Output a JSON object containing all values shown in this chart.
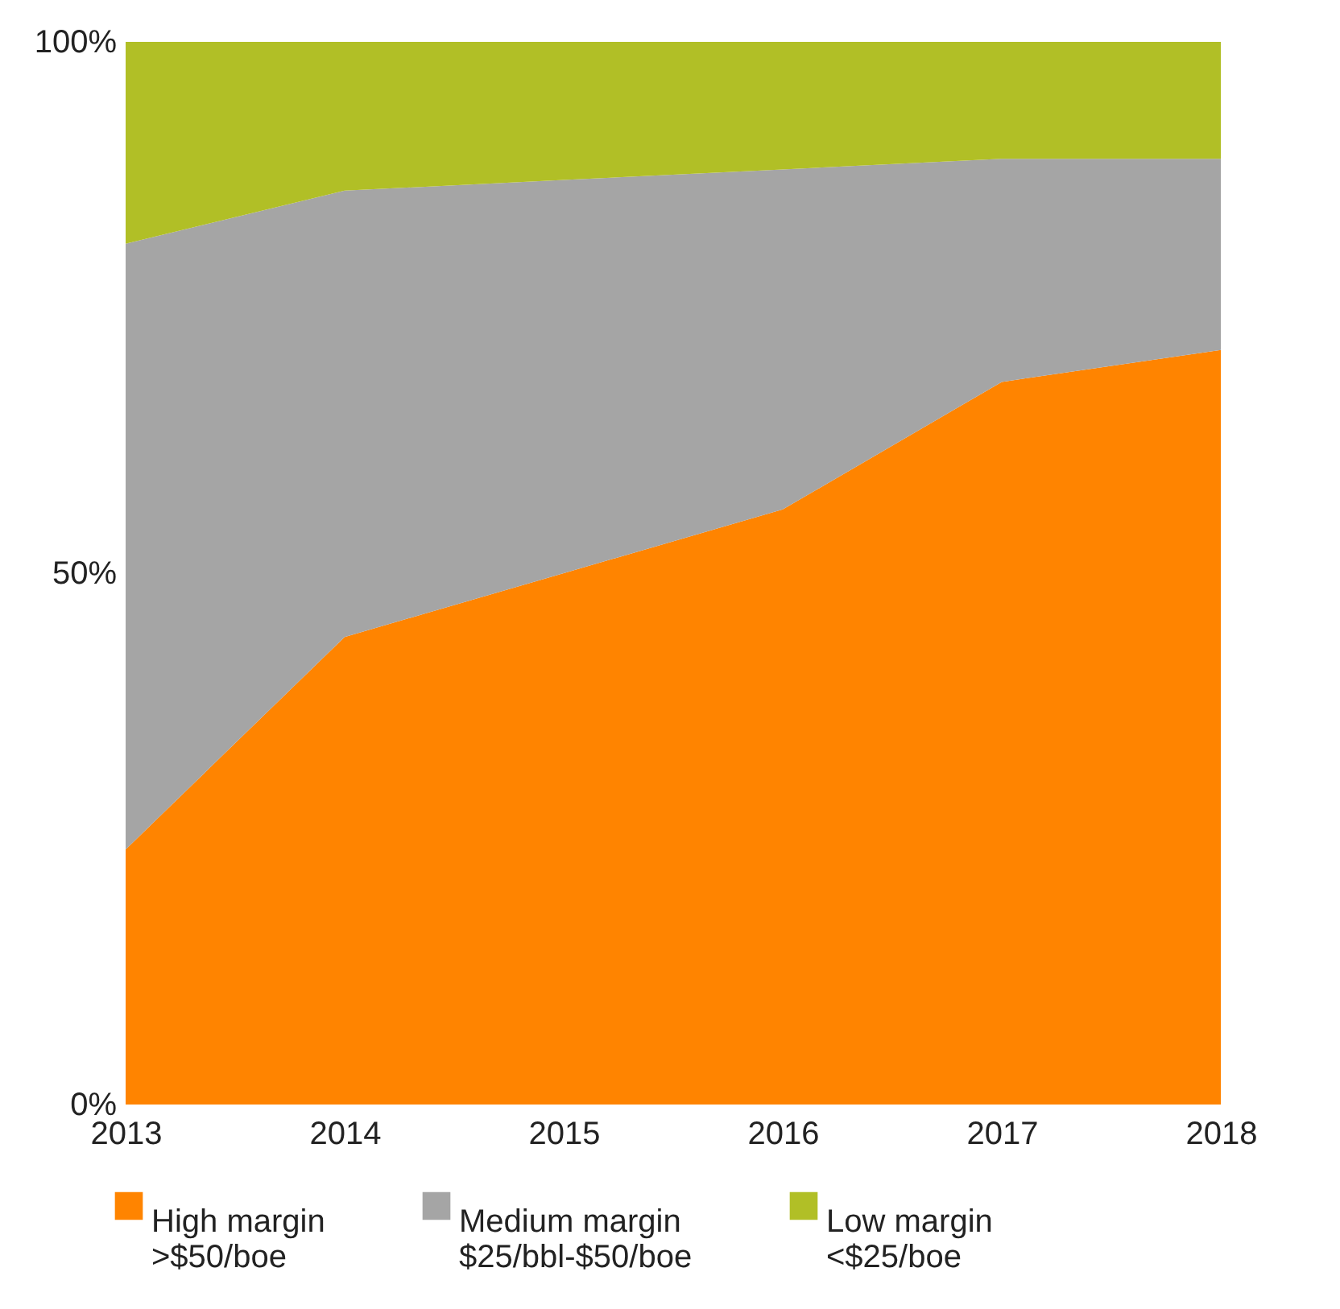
{
  "chart_data": {
    "type": "area",
    "stacked": true,
    "categories": [
      "2013",
      "2014",
      "2015",
      "2016",
      "2017",
      "2018"
    ],
    "series": [
      {
        "name": "High margin\n>$50/boe",
        "color": "#ff8400",
        "values": [
          24,
          44,
          50,
          56,
          68,
          71
        ]
      },
      {
        "name": "Medium margin\n$25/bbl-$50/boe",
        "color": "#a5a5a5",
        "values": [
          57,
          42,
          37,
          32,
          21,
          18
        ]
      },
      {
        "name": "Low margin\n<$25/boe",
        "color": "#b1bf26",
        "values": [
          19,
          14,
          13,
          12,
          11,
          11
        ]
      }
    ],
    "ylim": [
      0,
      100
    ],
    "yticks": [
      {
        "value": 0,
        "label": "0%"
      },
      {
        "value": 50,
        "label": "50%"
      },
      {
        "value": 100,
        "label": "100%"
      }
    ],
    "grid": false,
    "legend": "bottom"
  }
}
